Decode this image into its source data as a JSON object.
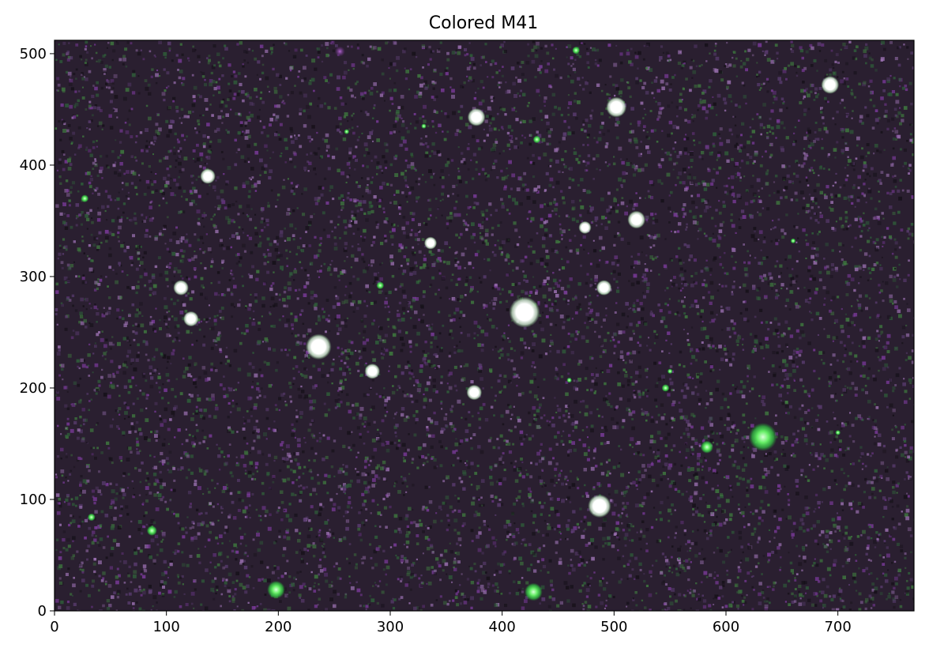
{
  "title": "Colored M41",
  "image": {
    "x_range": [
      0,
      768
    ],
    "y_range": [
      0,
      512
    ],
    "x_ticks": [
      "0",
      "100",
      "200",
      "300",
      "400",
      "500",
      "600",
      "700"
    ],
    "y_ticks": [
      "0",
      "100",
      "200",
      "300",
      "400",
      "500"
    ],
    "background_color": "#2a1f30",
    "noise_colors": [
      "#7a3a9a",
      "#3f7a3f",
      "#5a3c70",
      "#9a70b0",
      "#2f5f3a",
      "#151018"
    ],
    "stars": [
      {
        "x": 420,
        "y": 268,
        "r": 12,
        "color": "white"
      },
      {
        "x": 236,
        "y": 237,
        "r": 10,
        "color": "white"
      },
      {
        "x": 633,
        "y": 156,
        "r": 11,
        "color": "green"
      },
      {
        "x": 487,
        "y": 94,
        "r": 9,
        "color": "white"
      },
      {
        "x": 693,
        "y": 472,
        "r": 7,
        "color": "white"
      },
      {
        "x": 502,
        "y": 452,
        "r": 8,
        "color": "white"
      },
      {
        "x": 377,
        "y": 443,
        "r": 7,
        "color": "white"
      },
      {
        "x": 520,
        "y": 351,
        "r": 7,
        "color": "white"
      },
      {
        "x": 491,
        "y": 290,
        "r": 6,
        "color": "white"
      },
      {
        "x": 113,
        "y": 290,
        "r": 6,
        "color": "white"
      },
      {
        "x": 122,
        "y": 262,
        "r": 6,
        "color": "white"
      },
      {
        "x": 137,
        "y": 390,
        "r": 6,
        "color": "white"
      },
      {
        "x": 336,
        "y": 330,
        "r": 5,
        "color": "white"
      },
      {
        "x": 474,
        "y": 344,
        "r": 5,
        "color": "white"
      },
      {
        "x": 375,
        "y": 196,
        "r": 6,
        "color": "white"
      },
      {
        "x": 284,
        "y": 215,
        "r": 6,
        "color": "white"
      },
      {
        "x": 198,
        "y": 19,
        "r": 7,
        "color": "green"
      },
      {
        "x": 428,
        "y": 17,
        "r": 7,
        "color": "green"
      },
      {
        "x": 583,
        "y": 147,
        "r": 5,
        "color": "green"
      },
      {
        "x": 27,
        "y": 370,
        "r": 3,
        "color": "green"
      },
      {
        "x": 431,
        "y": 423,
        "r": 3,
        "color": "green"
      },
      {
        "x": 291,
        "y": 292,
        "r": 3,
        "color": "green"
      },
      {
        "x": 546,
        "y": 200,
        "r": 3,
        "color": "green"
      },
      {
        "x": 33,
        "y": 84,
        "r": 3,
        "color": "green"
      },
      {
        "x": 87,
        "y": 72,
        "r": 4,
        "color": "green"
      },
      {
        "x": 466,
        "y": 503,
        "r": 3,
        "color": "green"
      },
      {
        "x": 261,
        "y": 430,
        "r": 2,
        "color": "green"
      },
      {
        "x": 330,
        "y": 435,
        "r": 2,
        "color": "green"
      },
      {
        "x": 660,
        "y": 332,
        "r": 2,
        "color": "green"
      },
      {
        "x": 700,
        "y": 160,
        "r": 2,
        "color": "green"
      },
      {
        "x": 550,
        "y": 215,
        "r": 2,
        "color": "green"
      },
      {
        "x": 460,
        "y": 207,
        "r": 2,
        "color": "green"
      },
      {
        "x": 255,
        "y": 502,
        "r": 4,
        "color": "purple"
      }
    ]
  }
}
